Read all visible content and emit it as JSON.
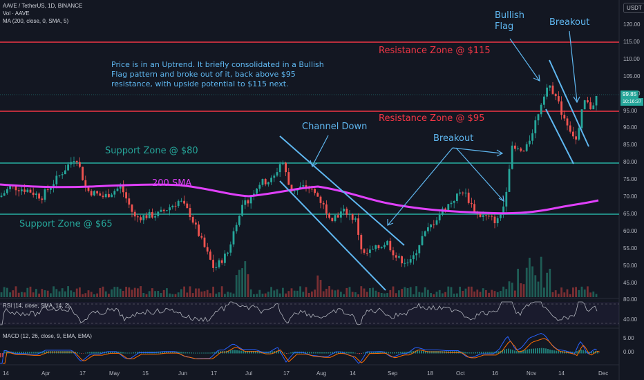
{
  "header": {
    "symbol_line": "AAVE / TetherUS, 1D, BINANCE",
    "volume_line": "Vol · AAVE",
    "ma_line": "MA (200, close, 0, SMA, 5)",
    "currency": "USDT"
  },
  "annotations": {
    "note": "Price is in an Uptrend. It briefly consolidated in a Bullish Flag pattern and broke out of it, back above $95 resistance, with upside potential to $115 next.",
    "resistance_115": "Resistance Zone @ $115",
    "resistance_95": "Resistance Zone @ $95",
    "support_80": "Support Zone @ $80",
    "support_65": "Support Zone @ $65",
    "sma_label": "200 SMA",
    "channel_down": "Channel Down",
    "breakout_1": "Breakout",
    "bullish_flag_1": "Bullish",
    "bullish_flag_2": "Flag",
    "breakout_2": "Breakout"
  },
  "price_axis": {
    "ticks": [
      "120.00",
      "115.00",
      "110.00",
      "105.00",
      "100.00",
      "95.00",
      "90.00",
      "85.00",
      "80.00",
      "75.00",
      "70.00",
      "65.00",
      "60.00",
      "55.00",
      "50.00",
      "45.00"
    ],
    "last_price": "99.85",
    "countdown": "10:16:37"
  },
  "rsi": {
    "label": "RSI (14, close, SMA, 14, 2)",
    "ticks": [
      "80.00",
      "40.00"
    ]
  },
  "macd": {
    "label": "MACD (12, 26, close, 9, EMA, EMA)",
    "ticks": [
      "5.00",
      "0.00"
    ]
  },
  "time_axis": [
    "14",
    "Apr",
    "17",
    "May",
    "15",
    "Jun",
    "17",
    "Jul",
    "17",
    "Aug",
    "14",
    "Sep",
    "18",
    "Oct",
    "16",
    "Nov",
    "14",
    "Dec"
  ],
  "colors": {
    "background": "#131722",
    "resistance": "#f23645",
    "support": "#26a69a",
    "sma": "#e040fb",
    "annotation_blue": "#5fb7f0",
    "up_candle": "#26a69a",
    "down_candle": "#ef5350",
    "macd_line": "#2962ff",
    "signal_line": "#ff6d00"
  }
}
